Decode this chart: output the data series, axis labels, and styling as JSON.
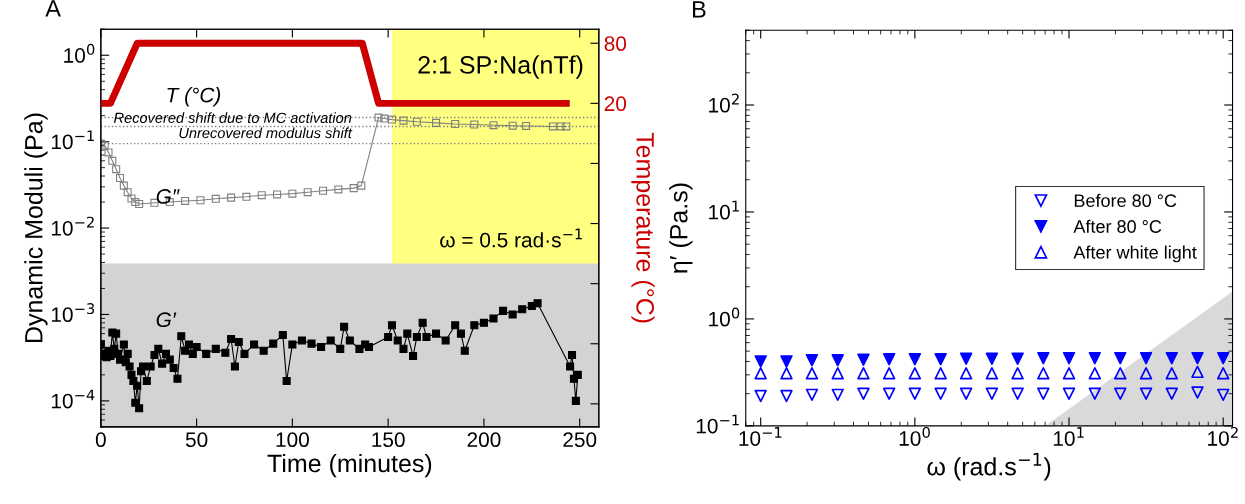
{
  "chart_data": [
    {
      "type": "line",
      "title": "A",
      "xlabel": "Time (minutes)",
      "ylabel": "Dynamic Moduli (Pa)",
      "y2label": "Temperature (°C)",
      "xlim": [
        0,
        260
      ],
      "xticks": [
        0,
        50,
        100,
        150,
        200,
        250
      ],
      "ylim": [
        5e-05,
        2
      ],
      "yticks": [
        {
          "value": 0.0001,
          "label": "10$^{−4}$"
        },
        {
          "value": 0.001,
          "label": "10$^{−3}$"
        },
        {
          "value": 0.01,
          "label": "10$^{−2}$"
        },
        {
          "value": 0.1,
          "label": "10$^{−1}$"
        },
        {
          "value": 1,
          "label": "10$^{0}$"
        }
      ],
      "y2lim": [
        -303,
        94
      ],
      "y2ticks": [
        {
          "value": -280,
          "label": null
        },
        {
          "value": -220,
          "label": null
        },
        {
          "value": -160,
          "label": null
        },
        {
          "value": -100,
          "label": null
        },
        {
          "value": -40,
          "label": null
        },
        20,
        80
      ],
      "log": "y",
      "grid": false,
      "legend": false,
      "bands": [
        {
          "axis": "x",
          "from": 152,
          "to": 260,
          "color": "#ffff80"
        },
        {
          "axis": "y",
          "from": 5e-05,
          "to": 0.0039,
          "color": "#d3d3d3"
        }
      ],
      "ref_lines": [
        {
          "axis": "y",
          "value": 0.095,
          "color": "#808080",
          "line_style": "dotted"
        },
        {
          "axis": "y",
          "value": 0.15,
          "color": "#808080",
          "line_style": "dotted"
        },
        {
          "axis": "y",
          "value": 0.19,
          "color": "#808080",
          "line_style": "dotted"
        }
      ],
      "annotations": [
        "2:1 SP:Na(nTf)",
        "ω = 0.5 rad·s$^{−1}$",
        "Recovered shift due to MC activation",
        "Unrecovered modulus shift"
      ],
      "series": [
        {
          "name": "T (°C)",
          "axis": "y2",
          "color": "#cc0000",
          "marker": "none",
          "x": [
            0,
            5,
            19,
            136.5,
            145,
            222,
            236,
            243
          ],
          "values": [
            20,
            20,
            80,
            80,
            20,
            20,
            20,
            20
          ]
        },
        {
          "name": "G″",
          "color": "#808080",
          "marker": "square_open",
          "x": [
            0,
            2,
            4,
            6,
            8,
            10,
            12,
            14,
            16,
            18,
            20,
            28,
            36,
            44,
            52,
            60,
            68,
            76,
            84,
            92,
            100,
            108,
            116,
            124,
            132,
            136,
            145,
            148,
            152,
            158,
            165,
            175,
            185,
            195,
            205,
            215,
            222,
            236,
            240,
            243
          ],
          "values": [
            0.095,
            0.09,
            0.075,
            0.06,
            0.048,
            0.038,
            0.031,
            0.026,
            0.022,
            0.02,
            0.019,
            0.0196,
            0.02,
            0.0206,
            0.021,
            0.0218,
            0.0225,
            0.023,
            0.024,
            0.0245,
            0.025,
            0.026,
            0.027,
            0.028,
            0.029,
            0.031,
            0.19,
            0.185,
            0.18,
            0.175,
            0.17,
            0.165,
            0.16,
            0.158,
            0.155,
            0.153,
            0.152,
            0.15,
            0.15,
            0.15
          ]
        },
        {
          "name": "G′",
          "color": "#000000",
          "marker": "square",
          "x": [
            0,
            1,
            2,
            3,
            4,
            5,
            6,
            7,
            8,
            9,
            10,
            12,
            13,
            14,
            15,
            16,
            17,
            18,
            19,
            20,
            21,
            22,
            24,
            26,
            28,
            30,
            32,
            34,
            36,
            38,
            40,
            42,
            44,
            46,
            48,
            50,
            55,
            60,
            65,
            68,
            70,
            72,
            75,
            80,
            85,
            90,
            95,
            97,
            100,
            105,
            110,
            115,
            120,
            125,
            127,
            130,
            135,
            138,
            140,
            150,
            152,
            155,
            158,
            160,
            163,
            165,
            168,
            170,
            175,
            180,
            185,
            188,
            190,
            195,
            200,
            205,
            210,
            215,
            220,
            225,
            228,
            245,
            246,
            247,
            248,
            249
          ],
          "values": [
            0.00045,
            0.00033,
            0.00035,
            0.00032,
            0.00038,
            0.00033,
            0.00062,
            0.0004,
            0.0006,
            0.00035,
            0.0003,
            0.00045,
            0.00028,
            0.00035,
            0.00025,
            0.0002,
            0.00017,
            9.5e-05,
            0.00015,
            8.2e-05,
            0.00022,
            0.00025,
            0.00017,
            0.00025,
            0.00034,
            0.0004,
            0.00027,
            0.00035,
            0.0003,
            0.00024,
            0.00018,
            0.00056,
            0.00038,
            0.00045,
            0.00035,
            0.00042,
            0.00035,
            0.0004,
            0.00036,
            0.00052,
            0.00025,
            0.00048,
            0.00035,
            0.00045,
            0.00038,
            0.00046,
            0.00058,
            0.00017,
            0.00045,
            0.0005,
            0.00046,
            0.00042,
            0.0005,
            0.0004,
            0.00072,
            0.0005,
            0.0004,
            0.00045,
            0.00042,
            0.00055,
            0.00075,
            0.0005,
            0.0004,
            0.0006,
            0.00033,
            0.00055,
            0.0008,
            0.00055,
            0.0006,
            0.0005,
            0.00075,
            0.0006,
            0.00038,
            0.00075,
            0.0008,
            0.0009,
            0.0011,
            0.001,
            0.00115,
            0.00125,
            0.00135,
            0.00025,
            0.00034,
            0.00018,
            0.0001,
            0.0002
          ]
        }
      ]
    },
    {
      "type": "scatter",
      "title": "B",
      "xlabel": "ω (rad.s$^{−1}$)",
      "ylabel": "η′ (Pa.s)",
      "x": [
        0.1,
        0.147,
        0.215,
        0.316,
        0.464,
        0.681,
        1,
        1.47,
        2.15,
        3.16,
        4.64,
        6.81,
        10,
        14.7,
        21.5,
        31.6,
        46.4,
        68.1,
        100
      ],
      "xlim": [
        0.08,
        115
      ],
      "xticks": [
        {
          "value": 0.1,
          "label": "10$^{−1}$"
        },
        {
          "value": 1,
          "label": "10$^{0}$"
        },
        {
          "value": 10,
          "label": "10$^{1}$"
        },
        {
          "value": 100,
          "label": "10$^{2}$"
        }
      ],
      "ylim": [
        0.1,
        500
      ],
      "yticks": [
        {
          "value": 0.1,
          "label": "10$^{−1}$"
        },
        {
          "value": 1,
          "label": "10$^{0}$"
        },
        {
          "value": 10,
          "label": "10$^{1}$"
        },
        {
          "value": 100,
          "label": "10$^{2}$"
        }
      ],
      "log": "xy",
      "grid": false,
      "legend": "right",
      "series": [
        {
          "type": "area",
          "color": "#d9d9d9",
          "x": [
            7,
            115
          ],
          "values": [
            0.1,
            1.8
          ]
        },
        {
          "name": "Before 80 °C",
          "color": "#0000ff",
          "marker": "triangle_down_open",
          "values": [
            0.19,
            0.19,
            0.195,
            0.195,
            0.2,
            0.2,
            0.2,
            0.2,
            0.2,
            0.2,
            0.2,
            0.2,
            0.2,
            0.2,
            0.2,
            0.2,
            0.2,
            0.205,
            0.195
          ]
        },
        {
          "name": "After 80 °C",
          "color": "#0000ff",
          "marker": "triangle_down",
          "values": [
            0.4,
            0.4,
            0.41,
            0.41,
            0.415,
            0.42,
            0.42,
            0.42,
            0.425,
            0.425,
            0.425,
            0.43,
            0.43,
            0.43,
            0.43,
            0.43,
            0.43,
            0.43,
            0.43
          ]
        },
        {
          "name": "After white light",
          "color": "#0000ff",
          "marker": "triangle_open",
          "values": [
            0.31,
            0.31,
            0.31,
            0.31,
            0.31,
            0.31,
            0.31,
            0.31,
            0.31,
            0.31,
            0.31,
            0.31,
            0.31,
            0.31,
            0.31,
            0.31,
            0.31,
            0.32,
            0.31
          ]
        }
      ]
    }
  ]
}
